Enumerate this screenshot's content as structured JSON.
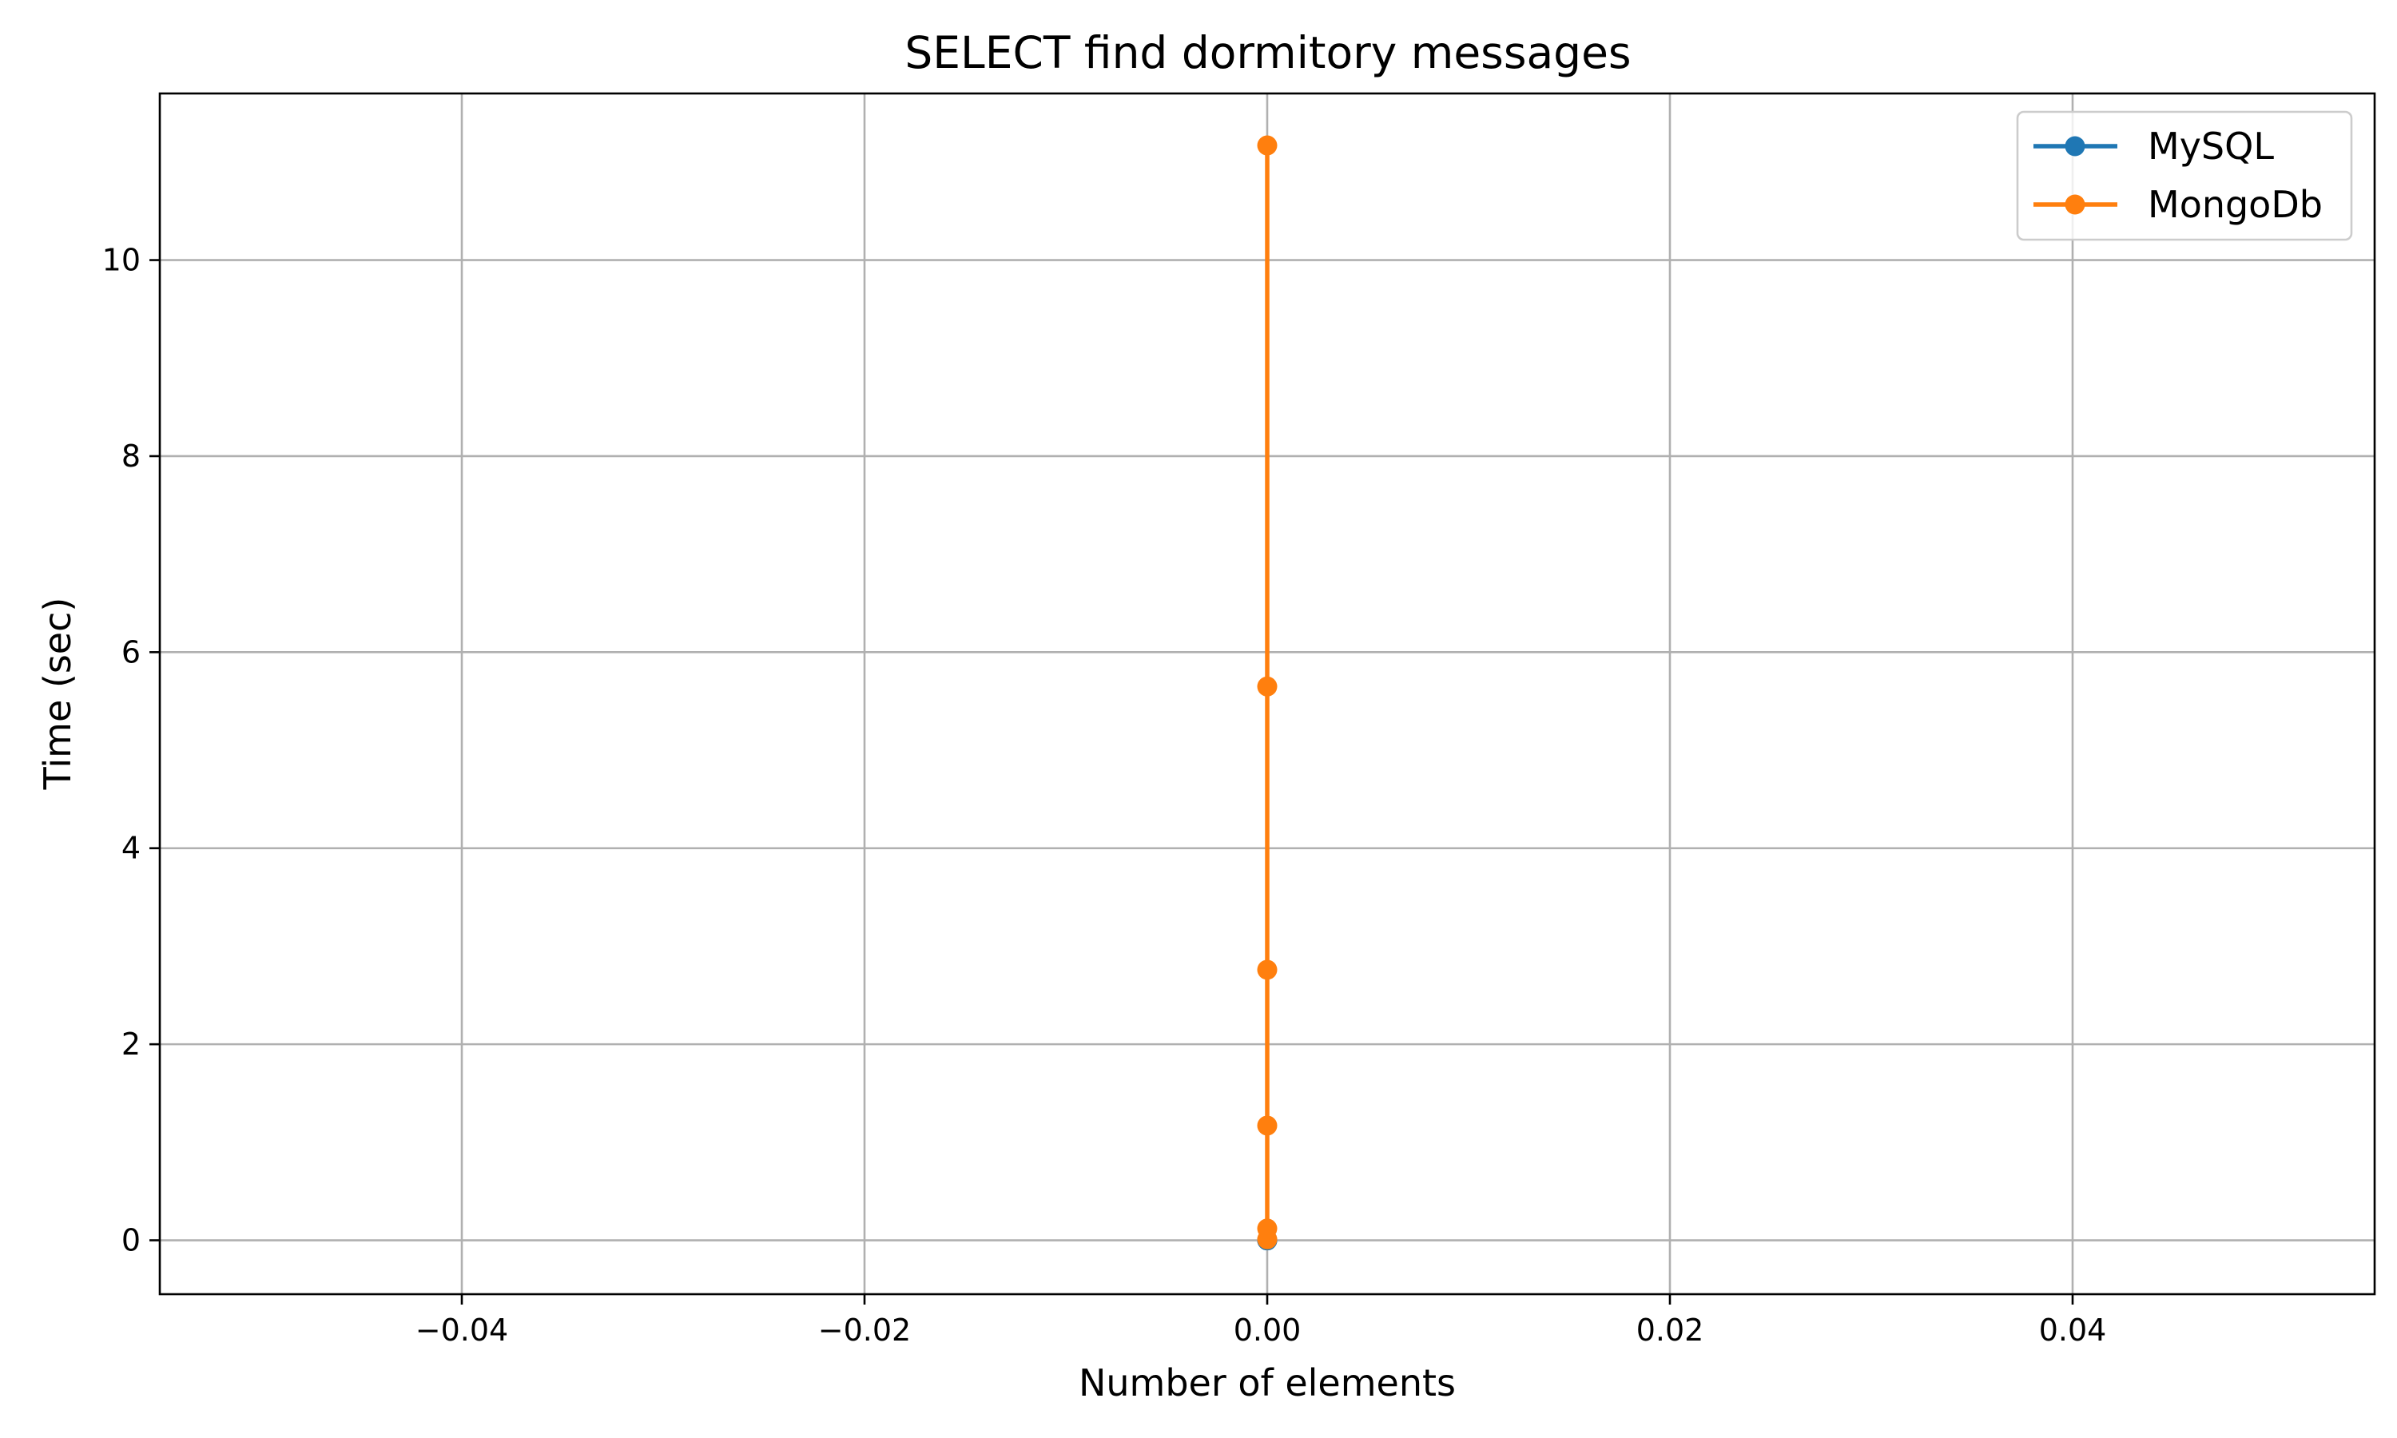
{
  "chart_data": {
    "type": "line",
    "title": "SELECT find dormitory messages",
    "xlabel": "Number of elements",
    "ylabel": "Time (sec)",
    "xlim": [
      -0.055,
      0.055
    ],
    "ylim": [
      -0.55,
      11.7
    ],
    "xticks": [
      -0.04,
      -0.02,
      0.0,
      0.02,
      0.04
    ],
    "xtick_labels": [
      "−0.04",
      "−0.02",
      "0.00",
      "0.02",
      "0.04"
    ],
    "yticks": [
      0,
      2,
      4,
      6,
      8,
      10
    ],
    "ytick_labels": [
      "0",
      "2",
      "4",
      "6",
      "8",
      "10"
    ],
    "grid": true,
    "legend_position": "top-right",
    "series": [
      {
        "name": "MySQL",
        "color": "#1f77b4",
        "x": [
          0,
          0,
          0,
          0,
          0,
          0
        ],
        "y": [
          0.0,
          0.0,
          0.0,
          0.0,
          0.0,
          0.0
        ]
      },
      {
        "name": "MongoDb",
        "color": "#ff7f0e",
        "x": [
          0,
          0,
          0,
          0,
          0,
          0
        ],
        "y": [
          0.01,
          0.12,
          1.17,
          2.76,
          5.65,
          11.17
        ]
      }
    ]
  }
}
